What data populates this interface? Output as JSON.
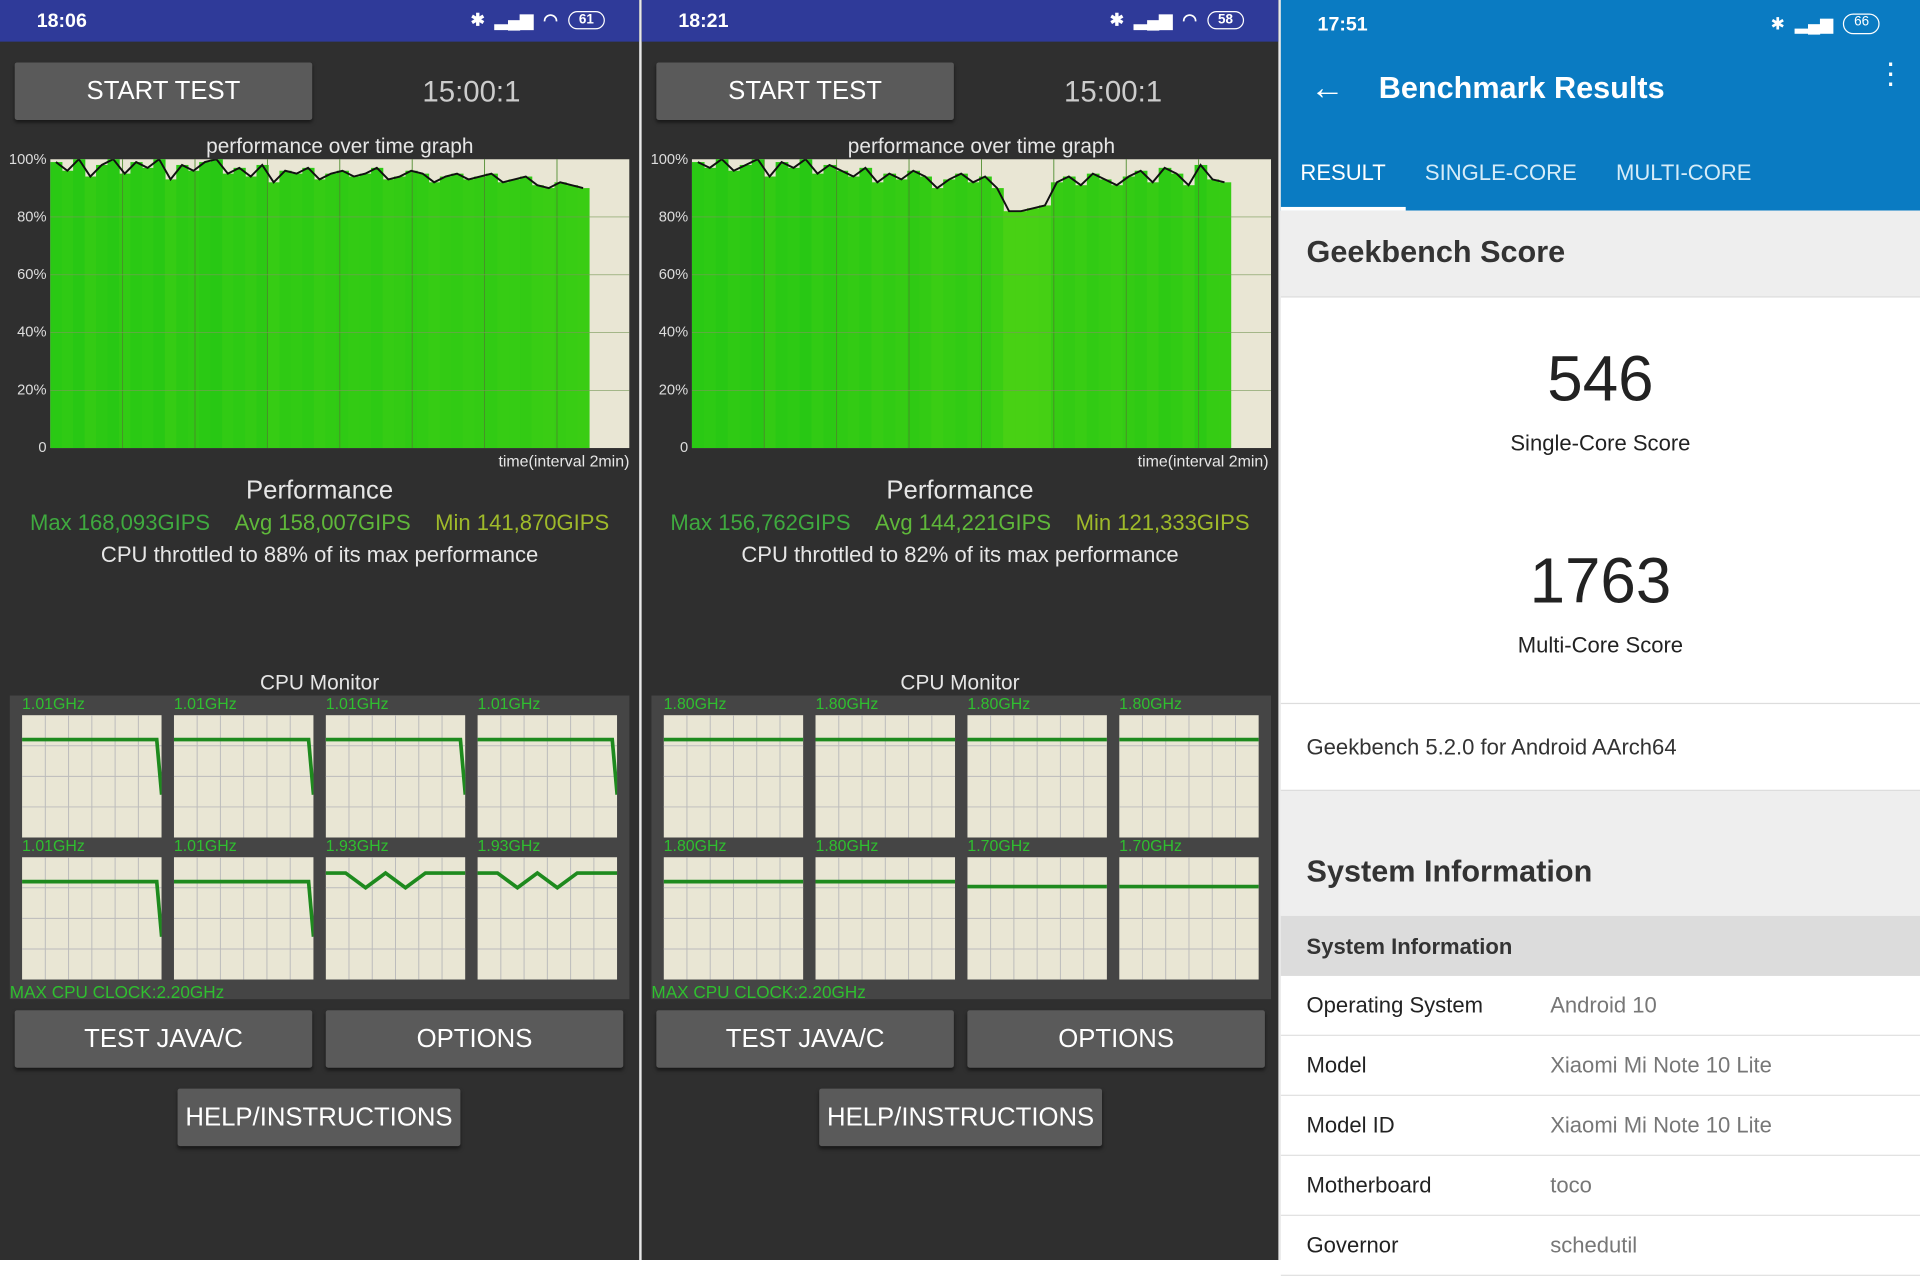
{
  "panels": [
    {
      "status_time": "18:06",
      "battery": "61",
      "start_label": "START TEST",
      "timer": "15:00:1",
      "graph_title": "performance over time graph",
      "y_ticks": [
        "100%",
        "80%",
        "60%",
        "40%",
        "20%",
        "0"
      ],
      "x_label": "time(interval 2min)",
      "perf_title": "Performance",
      "max": "Max 168,093GIPS",
      "avg": "Avg 158,007GIPS",
      "min": "Min 141,870GIPS",
      "throttle": "CPU throttled to 88% of its max performance",
      "cpu_title": "CPU Monitor",
      "cores": [
        "1.01GHz",
        "1.01GHz",
        "1.01GHz",
        "1.01GHz",
        "1.01GHz",
        "1.01GHz",
        "1.93GHz",
        "1.93GHz"
      ],
      "max_clock": "MAX CPU CLOCK:2.20GHz",
      "java_label": "TEST JAVA/C",
      "options_label": "OPTIONS",
      "help_label": "HELP/INSTRUCTIONS"
    },
    {
      "status_time": "18:21",
      "battery": "58",
      "start_label": "START TEST",
      "timer": "15:00:1",
      "graph_title": "performance over time graph",
      "y_ticks": [
        "100%",
        "80%",
        "60%",
        "40%",
        "20%",
        "0"
      ],
      "x_label": "time(interval 2min)",
      "perf_title": "Performance",
      "max": "Max 156,762GIPS",
      "avg": "Avg 144,221GIPS",
      "min": "Min 121,333GIPS",
      "throttle": "CPU throttled to 82% of its max performance",
      "cpu_title": "CPU Monitor",
      "cores": [
        "1.80GHz",
        "1.80GHz",
        "1.80GHz",
        "1.80GHz",
        "1.80GHz",
        "1.80GHz",
        "1.70GHz",
        "1.70GHz"
      ],
      "max_clock": "MAX CPU CLOCK:2.20GHz",
      "java_label": "TEST JAVA/C",
      "options_label": "OPTIONS",
      "help_label": "HELP/INSTRUCTIONS"
    }
  ],
  "chart_data": [
    {
      "type": "area",
      "title": "performance over time graph",
      "xlabel": "time(interval 2min)",
      "ylim": [
        0,
        100
      ],
      "y_unit": "%",
      "values": [
        99,
        96,
        100,
        94,
        98,
        100,
        95,
        99,
        97,
        100,
        93,
        98,
        96,
        99,
        100,
        95,
        97,
        94,
        98,
        92,
        96,
        95,
        97,
        93,
        95,
        96,
        94,
        95,
        97,
        93,
        94,
        96,
        95,
        92,
        94,
        95,
        93,
        94,
        95,
        92,
        93,
        94,
        91,
        90,
        92,
        91,
        90
      ],
      "x_extent": 0.93
    },
    {
      "type": "area",
      "title": "performance over time graph",
      "xlabel": "time(interval 2min)",
      "ylim": [
        0,
        100
      ],
      "y_unit": "%",
      "values": [
        99,
        97,
        100,
        96,
        98,
        100,
        94,
        99,
        97,
        100,
        95,
        98,
        96,
        94,
        97,
        92,
        95,
        93,
        96,
        94,
        90,
        93,
        95,
        92,
        94,
        90,
        82,
        82,
        83,
        84,
        92,
        94,
        91,
        95,
        93,
        91,
        94,
        96,
        92,
        97,
        95,
        91,
        98,
        93,
        92
      ],
      "x_extent": 0.93
    }
  ],
  "cpu_lines": [
    [
      [
        80,
        80,
        80,
        80,
        80,
        35
      ],
      [
        80,
        80,
        80,
        80,
        80,
        35
      ],
      [
        80,
        80,
        80,
        80,
        80,
        35
      ],
      [
        80,
        80,
        80,
        80,
        80,
        35
      ],
      [
        80,
        80,
        80,
        80,
        80,
        35
      ],
      [
        80,
        80,
        80,
        80,
        80,
        35
      ],
      [
        87,
        87,
        75,
        87,
        75,
        87,
        87,
        87
      ],
      [
        87,
        87,
        75,
        87,
        75,
        87,
        87,
        87
      ]
    ],
    [
      [
        80,
        80
      ],
      [
        80,
        80
      ],
      [
        80,
        80
      ],
      [
        80,
        80
      ],
      [
        80,
        80
      ],
      [
        80,
        80
      ],
      [
        76,
        76
      ],
      [
        76,
        76
      ]
    ]
  ],
  "geekbench": {
    "status_time": "17:51",
    "battery": "66",
    "title": "Benchmark Results",
    "accent": "#0a7bc2",
    "tabs": [
      "RESULT",
      "SINGLE-CORE",
      "MULTI-CORE"
    ],
    "score_heading": "Geekbench Score",
    "single_score": "546",
    "single_label": "Single-Core Score",
    "multi_score": "1763",
    "multi_label": "Multi-Core Score",
    "version": "Geekbench 5.2.0 for Android AArch64",
    "sysinfo_heading": "System Information",
    "table_header": "System Information",
    "rows": [
      {
        "k": "Operating System",
        "v": "Android 10"
      },
      {
        "k": "Model",
        "v": "Xiaomi Mi Note 10 Lite"
      },
      {
        "k": "Model ID",
        "v": "Xiaomi Mi Note 10 Lite"
      },
      {
        "k": "Motherboard",
        "v": "toco"
      },
      {
        "k": "Governor",
        "v": "schedutil"
      }
    ]
  }
}
